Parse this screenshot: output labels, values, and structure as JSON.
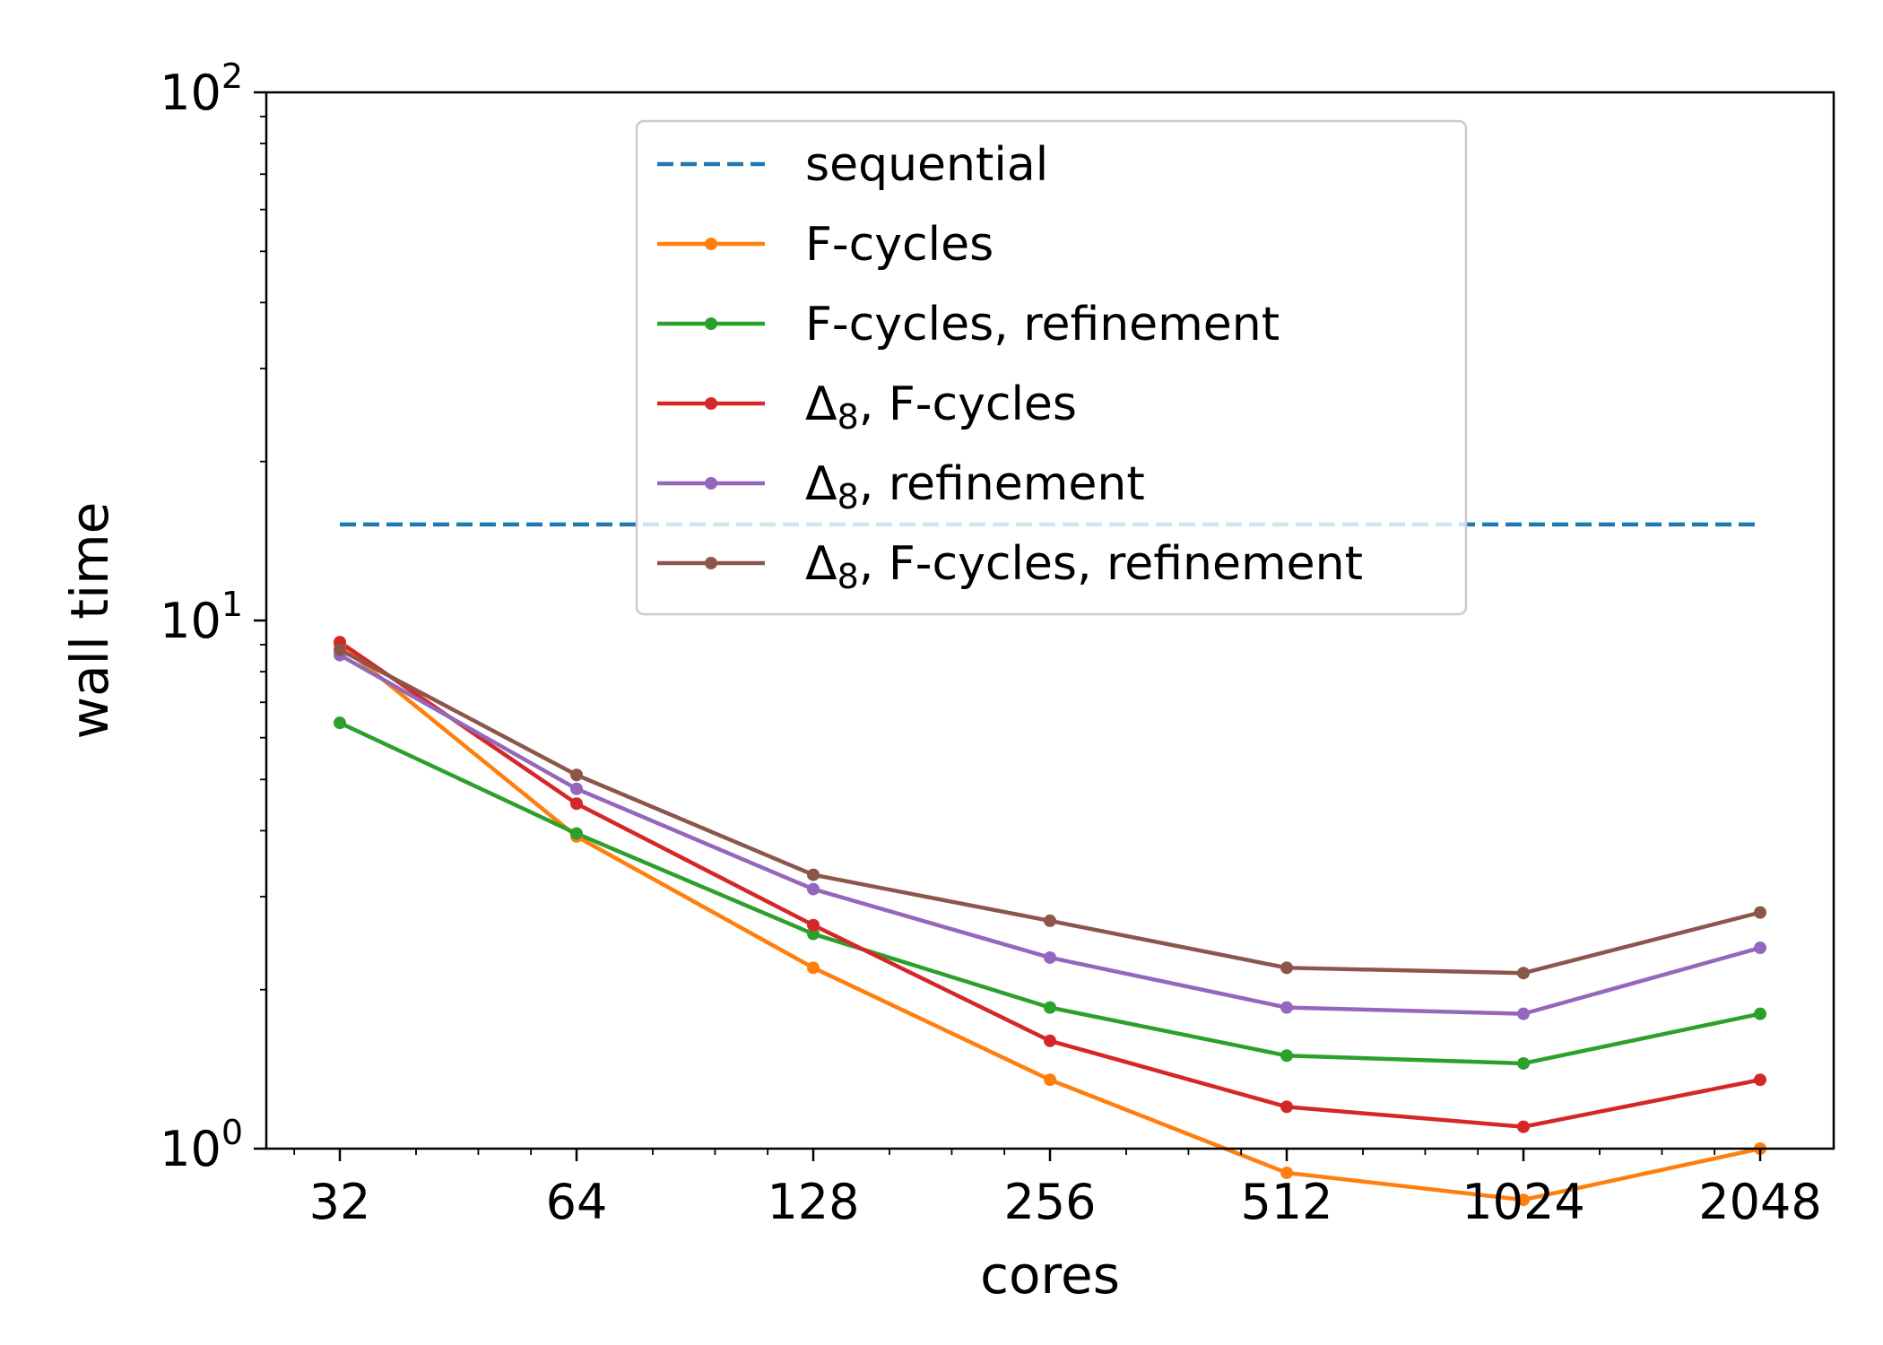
{
  "chart_data": {
    "type": "line",
    "title": "",
    "xlabel": "cores",
    "ylabel": "wall time",
    "x_scale": "log2",
    "y_scale": "log10",
    "x": [
      32,
      64,
      128,
      256,
      512,
      1024,
      2048
    ],
    "x_tick_labels": [
      "32",
      "64",
      "128",
      "256",
      "512",
      "1024",
      "2048"
    ],
    "ylim": [
      1,
      100
    ],
    "y_ticks": [
      {
        "value": 1,
        "base": "10",
        "exp": "0"
      },
      {
        "value": 10,
        "base": "10",
        "exp": "1"
      },
      {
        "value": 100,
        "base": "10",
        "exp": "2"
      }
    ],
    "grid": false,
    "legend_position": "upper-center",
    "series": [
      {
        "name": "sequential",
        "color": "#1f77b4",
        "style": "dashed",
        "markers": false,
        "values": [
          15.2,
          15.2,
          15.2,
          15.2,
          15.2,
          15.2,
          15.2
        ]
      },
      {
        "name": "F-cycles",
        "color": "#ff7f0e",
        "style": "solid",
        "markers": true,
        "values": [
          9.0,
          3.9,
          2.2,
          1.35,
          0.9,
          0.8,
          1.0
        ]
      },
      {
        "name": "F-cycles, refinement",
        "color": "#2ca02c",
        "style": "solid",
        "markers": true,
        "values": [
          6.4,
          3.95,
          2.55,
          1.85,
          1.5,
          1.45,
          1.8
        ]
      },
      {
        "name": "Δ8, F-cycles",
        "color": "#d62728",
        "style": "solid",
        "markers": true,
        "values": [
          9.1,
          4.5,
          2.65,
          1.6,
          1.2,
          1.1,
          1.35
        ]
      },
      {
        "name": "Δ8, refinement",
        "color": "#9467bd",
        "style": "solid",
        "markers": true,
        "values": [
          8.6,
          4.8,
          3.1,
          2.3,
          1.85,
          1.8,
          2.4
        ]
      },
      {
        "name": "Δ8, F-cycles, refinement",
        "color": "#8c564b",
        "style": "solid",
        "markers": true,
        "values": [
          8.8,
          5.1,
          3.3,
          2.7,
          2.2,
          2.15,
          2.8
        ]
      }
    ]
  }
}
